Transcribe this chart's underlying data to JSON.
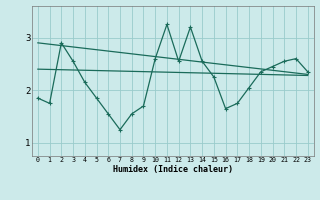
{
  "xlabel": "Humidex (Indice chaleur)",
  "x": [
    0,
    1,
    2,
    3,
    4,
    5,
    6,
    7,
    8,
    9,
    10,
    11,
    12,
    13,
    14,
    15,
    16,
    17,
    18,
    19,
    20,
    21,
    22,
    23
  ],
  "line1": [
    1.85,
    1.75,
    2.9,
    2.55,
    2.15,
    1.85,
    1.55,
    1.25,
    1.55,
    1.7,
    2.6,
    3.25,
    2.55,
    3.2,
    2.55,
    2.25,
    1.65,
    1.75,
    2.05,
    2.35,
    2.45,
    2.55,
    2.6,
    2.35
  ],
  "line2_x": [
    0,
    23
  ],
  "line2": [
    2.9,
    2.3
  ],
  "line3_x": [
    0,
    23
  ],
  "line3": [
    2.4,
    2.28
  ],
  "color": "#1a6b5a",
  "bg_color": "#cceaea",
  "grid_color": "#99cccc",
  "ylim": [
    0.75,
    3.6
  ],
  "yticks": [
    1,
    2,
    3
  ],
  "xlim": [
    -0.5,
    23.5
  ]
}
